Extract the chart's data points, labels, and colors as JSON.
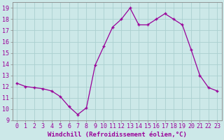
{
  "x": [
    0,
    1,
    2,
    3,
    4,
    5,
    6,
    7,
    8,
    9,
    10,
    11,
    12,
    13,
    14,
    15,
    16,
    17,
    18,
    19,
    20,
    21,
    22,
    23
  ],
  "y": [
    12.3,
    12.0,
    11.9,
    11.8,
    11.6,
    11.1,
    10.2,
    9.5,
    10.1,
    13.9,
    15.6,
    17.3,
    18.0,
    19.0,
    17.5,
    17.5,
    18.0,
    18.5,
    18.0,
    17.5,
    15.3,
    13.0,
    11.9,
    11.6
  ],
  "line_color": "#990099",
  "marker": "+",
  "bg_color": "#cce8e8",
  "grid_color": "#aad0d0",
  "xlabel": "Windchill (Refroidissement éolien,°C)",
  "ylabel_ticks": [
    9,
    10,
    11,
    12,
    13,
    14,
    15,
    16,
    17,
    18,
    19
  ],
  "xlim": [
    -0.5,
    23.5
  ],
  "ylim": [
    9,
    19.5
  ],
  "label_fontsize": 6.5,
  "tick_fontsize": 6.0
}
